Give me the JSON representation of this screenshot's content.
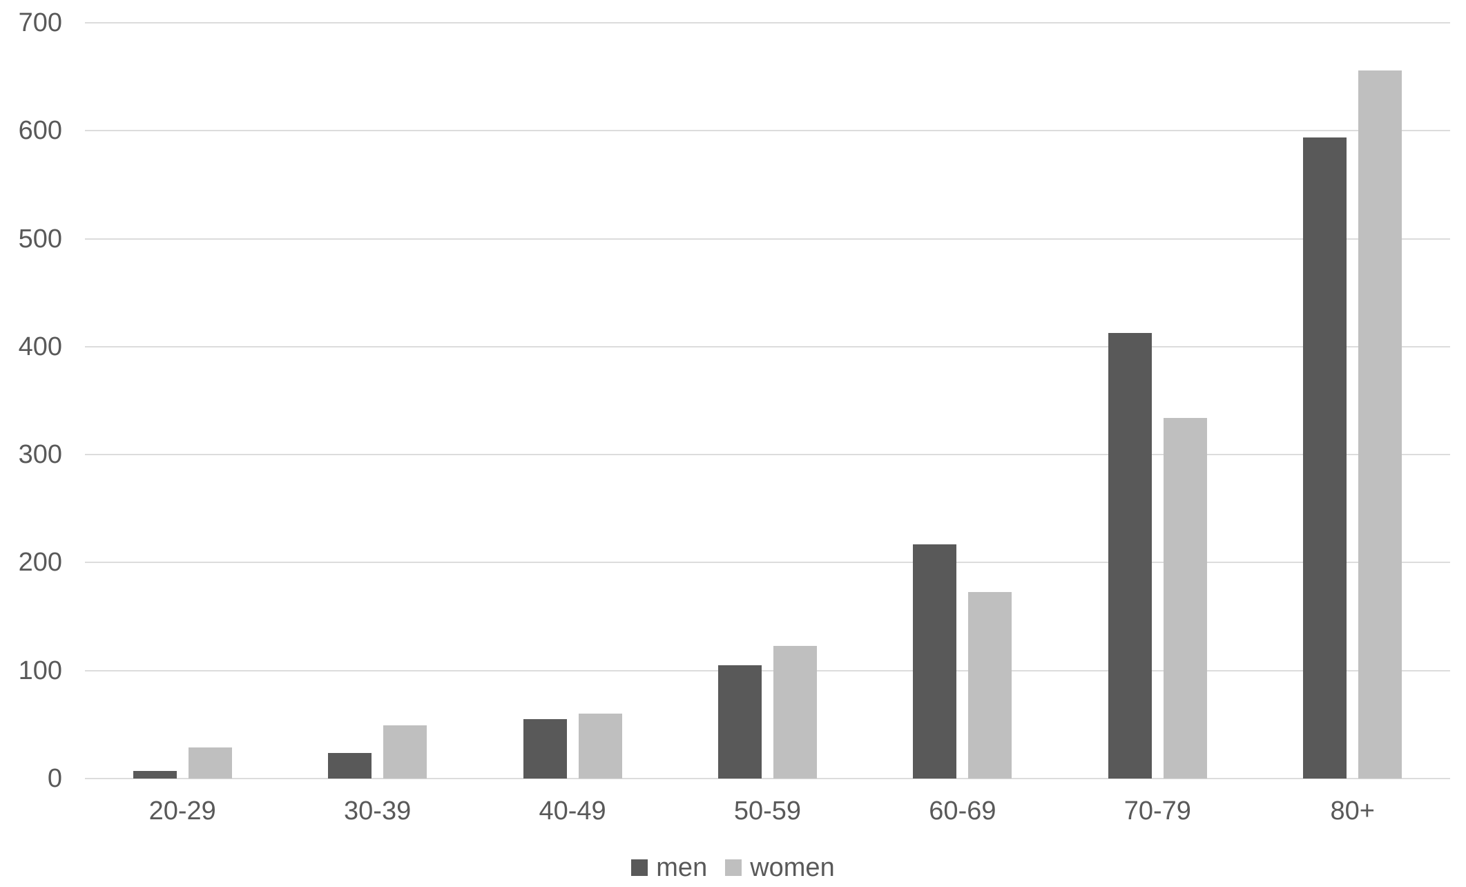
{
  "chart_data": {
    "type": "bar",
    "categories": [
      "20-29",
      "30-39",
      "40-49",
      "50-59",
      "60-69",
      "70-79",
      "80+"
    ],
    "series": [
      {
        "name": "men",
        "color": "#595959",
        "values": [
          7,
          24,
          55,
          105,
          217,
          413,
          594
        ]
      },
      {
        "name": "women",
        "color": "#bfbfbf",
        "values": [
          29,
          49,
          60,
          123,
          173,
          334,
          656
        ]
      }
    ],
    "ylim": [
      0,
      700
    ],
    "yticks": [
      0,
      100,
      200,
      300,
      400,
      500,
      600,
      700
    ],
    "grid": true,
    "legend_position": "bottom",
    "legend": [
      "men",
      "women"
    ]
  },
  "colors": {
    "background": "#ffffff",
    "text": "#595959",
    "gridline": "#dcdcdc"
  }
}
